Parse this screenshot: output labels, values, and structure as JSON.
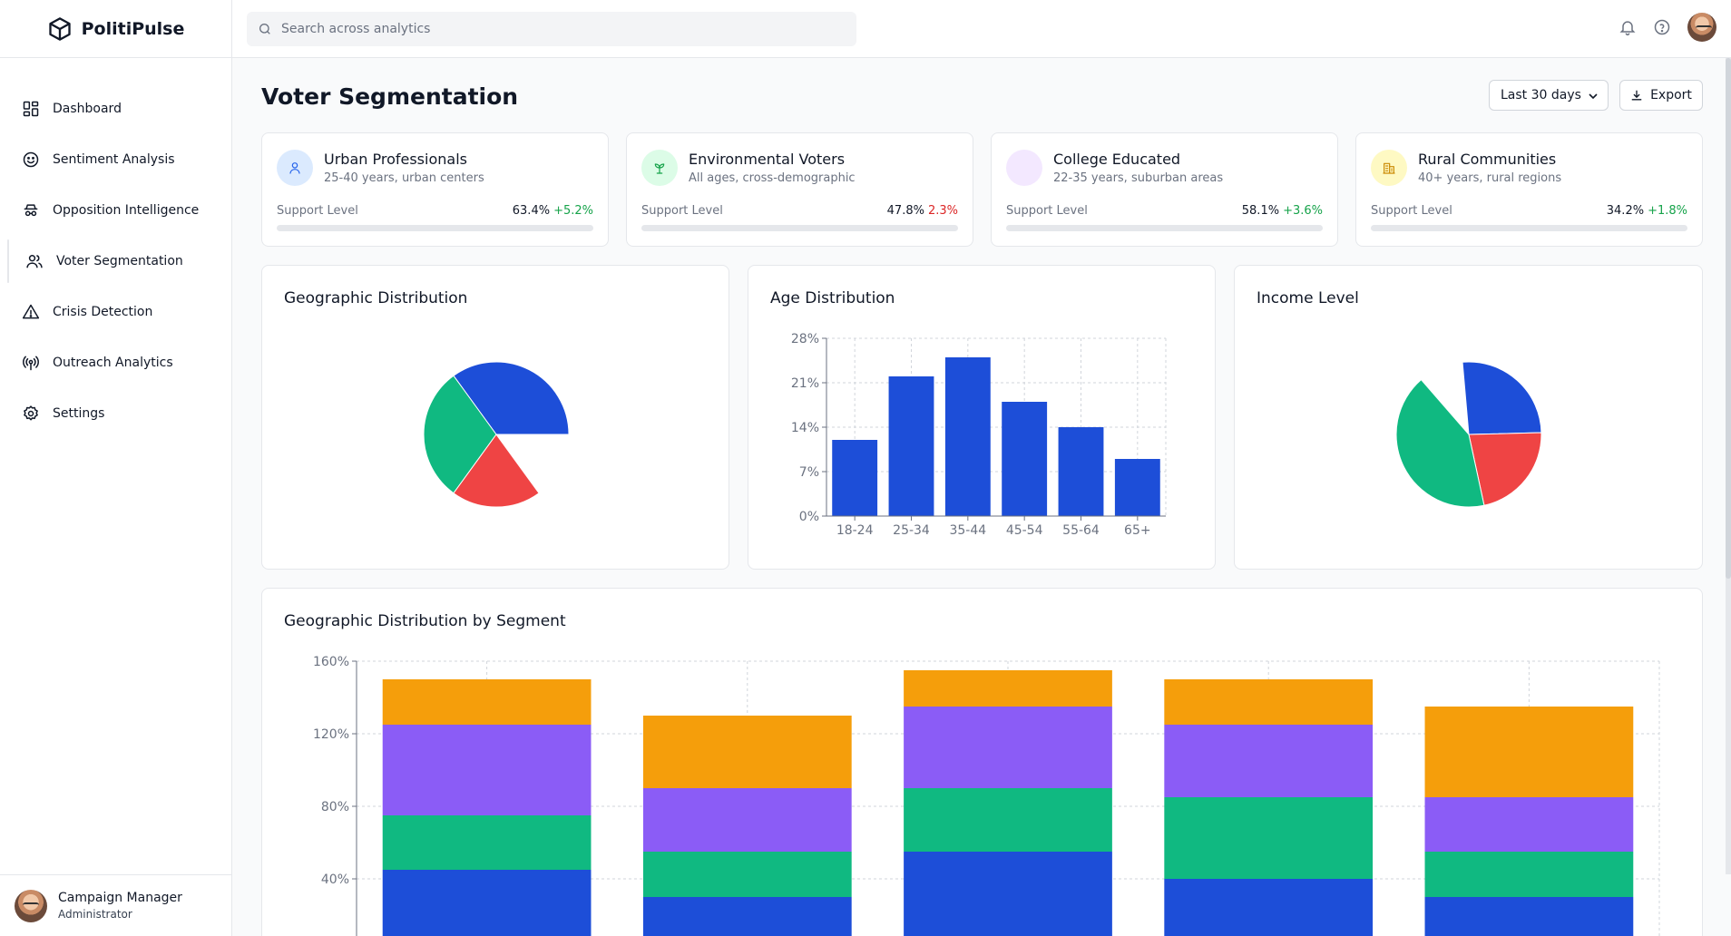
{
  "app": {
    "name": "PolitiPulse"
  },
  "sidebar": {
    "items": [
      {
        "label": "Dashboard",
        "icon": "dashboard-icon"
      },
      {
        "label": "Sentiment Analysis",
        "icon": "smile-icon"
      },
      {
        "label": "Opposition Intelligence",
        "icon": "spy-icon"
      },
      {
        "label": "Voter Segmentation",
        "icon": "users-icon",
        "active": true
      },
      {
        "label": "Crisis Detection",
        "icon": "alert-triangle-icon"
      },
      {
        "label": "Outreach Analytics",
        "icon": "broadcast-icon"
      },
      {
        "label": "Settings",
        "icon": "gear-icon"
      }
    ],
    "user": {
      "name": "Campaign Manager",
      "role": "Administrator"
    }
  },
  "topbar": {
    "search_placeholder": "Search across analytics"
  },
  "page": {
    "title": "Voter Segmentation",
    "range_select": "Last 30 days",
    "export_label": "Export"
  },
  "segments": [
    {
      "name": "Urban Professionals",
      "desc": "25-40 years, urban centers",
      "support_label": "Support Level",
      "value": "63.4%",
      "change": "+5.2%",
      "change_color": "#16a34a",
      "icon": "user-icon",
      "icon_bg": "#dbeafe",
      "icon_color": "#2563eb"
    },
    {
      "name": "Environmental Voters",
      "desc": "All ages, cross-demographic",
      "support_label": "Support Level",
      "value": "47.8%",
      "change": "2.3%",
      "change_color": "#dc2626",
      "icon": "sprout-icon",
      "icon_bg": "#dcfce7",
      "icon_color": "#16a34a"
    },
    {
      "name": "College Educated",
      "desc": "22-35 years, suburban areas",
      "support_label": "Support Level",
      "value": "58.1%",
      "change": "+3.6%",
      "change_color": "#16a34a",
      "icon": "",
      "icon_bg": "#f3e8ff",
      "icon_color": "#9333ea"
    },
    {
      "name": "Rural Communities",
      "desc": "40+ years, rural regions",
      "support_label": "Support Level",
      "value": "34.2%",
      "change": "+1.8%",
      "change_color": "#16a34a",
      "icon": "building-icon",
      "icon_bg": "#fef9c3",
      "icon_color": "#ca8a04"
    }
  ],
  "chart_data": [
    {
      "type": "pie",
      "title": "Geographic Distribution",
      "values": [
        35,
        30,
        20
      ],
      "colors": [
        "#1d4ed8",
        "#10b981",
        "#ef4444"
      ]
    },
    {
      "type": "bar",
      "title": "Age Distribution",
      "categories": [
        "18-24",
        "25-34",
        "35-44",
        "45-54",
        "55-64",
        "65+"
      ],
      "values": [
        12,
        22,
        25,
        18,
        14,
        9
      ],
      "yticks": [
        "0%",
        "7%",
        "14%",
        "21%",
        "28%"
      ],
      "ylim": [
        0,
        28
      ],
      "grid": true,
      "color": "#1d4ed8"
    },
    {
      "type": "pie",
      "title": "Income Level",
      "values": [
        26,
        22,
        42
      ],
      "colors": [
        "#1d4ed8",
        "#ef4444",
        "#10b981"
      ]
    },
    {
      "type": "bar",
      "stacked": true,
      "title": "Geographic Distribution by Segment",
      "categories": [
        "",
        "",
        "",
        "",
        ""
      ],
      "series": [
        {
          "color": "#1d4ed8",
          "values": [
            45,
            30,
            55,
            40,
            30
          ]
        },
        {
          "color": "#10b981",
          "values": [
            30,
            25,
            35,
            45,
            25
          ]
        },
        {
          "color": "#8b5cf6",
          "values": [
            50,
            35,
            45,
            40,
            30
          ]
        },
        {
          "color": "#f59e0b",
          "values": [
            25,
            40,
            20,
            25,
            50
          ]
        }
      ],
      "yticks": [
        "40%",
        "80%",
        "120%",
        "160%"
      ],
      "ylim": [
        0,
        160
      ],
      "grid": true
    }
  ]
}
